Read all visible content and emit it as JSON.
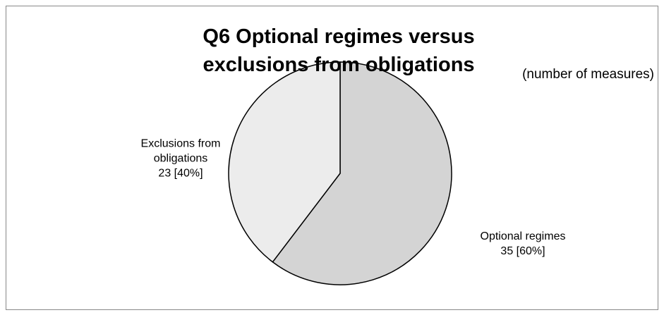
{
  "chart_data": {
    "type": "pie",
    "title": "Q6 Optional regimes versus exclusions from obligations",
    "subtitle": "(number of measures)",
    "categories": [
      "Optional regimes",
      "Exclusions from obligations"
    ],
    "values": [
      35,
      23
    ],
    "value_labels": [
      "35 [60%]",
      "23 [40%]"
    ],
    "colors": [
      "#d4d4d4",
      "#ececec"
    ]
  }
}
